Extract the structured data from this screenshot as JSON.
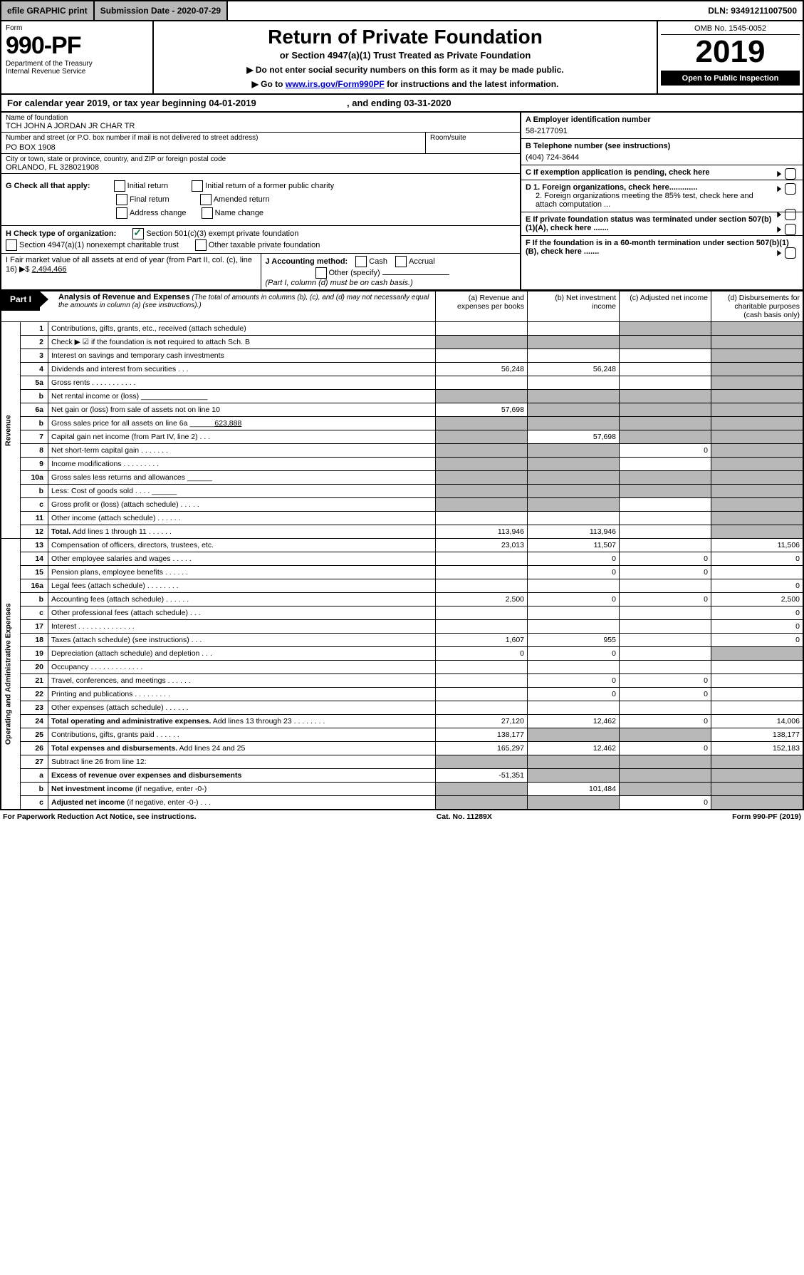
{
  "topbar": {
    "print": "efile GRAPHIC print",
    "submission": "Submission Date - 2020-07-29",
    "dln": "DLN: 93491211007500"
  },
  "head": {
    "form_label": "Form",
    "form_no": "990-PF",
    "dept": "Department of the Treasury",
    "irs": "Internal Revenue Service",
    "title": "Return of Private Foundation",
    "subtitle": "or Section 4947(a)(1) Trust Treated as Private Foundation",
    "instr1": "▶ Do not enter social security numbers on this form as it may be made public.",
    "instr2_pre": "▶ Go to ",
    "instr2_link": "www.irs.gov/Form990PF",
    "instr2_post": " for instructions and the latest information.",
    "omb": "OMB No. 1545-0052",
    "year": "2019",
    "open": "Open to Public Inspection"
  },
  "calyear": {
    "text": "For calendar year 2019, or tax year beginning 04-01-2019",
    "end": ", and ending 03-31-2020"
  },
  "info": {
    "name_label": "Name of foundation",
    "name": "TCH JOHN A JORDAN JR CHAR TR",
    "addr_label": "Number and street (or P.O. box number if mail is not delivered to street address)",
    "addr": "PO BOX 1908",
    "room_label": "Room/suite",
    "city_label": "City or town, state or province, country, and ZIP or foreign postal code",
    "city": "ORLANDO, FL  328021908",
    "a_label": "A Employer identification number",
    "a_val": "58-2177091",
    "b_label": "B Telephone number (see instructions)",
    "b_val": "(404) 724-3644",
    "c_label": "C If exemption application is pending, check here",
    "d1": "D 1. Foreign organizations, check here.............",
    "d2": "2. Foreign organizations meeting the 85% test, check here and attach computation ...",
    "e": "E  If private foundation status was terminated under section 507(b)(1)(A), check here .......",
    "f": "F  If the foundation is in a 60-month termination under section 507(b)(1)(B), check here .......",
    "g_label": "G Check all that apply:",
    "g_opts": {
      "initial": "Initial return",
      "initial_former": "Initial return of a former public charity",
      "final": "Final return",
      "amended": "Amended return",
      "addr_change": "Address change",
      "name_change": "Name change"
    },
    "h_label": "H Check type of organization:",
    "h_opts": {
      "501c3": "Section 501(c)(3) exempt private foundation",
      "4947": "Section 4947(a)(1) nonexempt charitable trust",
      "other_tax": "Other taxable private foundation"
    },
    "i_label": "I Fair market value of all assets at end of year (from Part II, col. (c), line 16)",
    "i_prefix": "▶$ ",
    "i_val": "2,494,466",
    "j_label": "J Accounting method:",
    "j_cash": "Cash",
    "j_accrual": "Accrual",
    "j_other": "Other (specify)",
    "j_note": "(Part I, column (d) must be on cash basis.)"
  },
  "part1": {
    "label": "Part I",
    "title": "Analysis of Revenue and Expenses",
    "note": " (The total of amounts in columns (b), (c), and (d) may not necessarily equal the amounts in column (a) (see instructions).)",
    "col_a": "(a)   Revenue and expenses per books",
    "col_b": "(b)   Net investment income",
    "col_c": "(c)   Adjusted net income",
    "col_d": "(d)   Disbursements for charitable purposes (cash basis only)",
    "vlabel_rev": "Revenue",
    "vlabel_exp": "Operating and Administrative Expenses"
  },
  "rows": [
    {
      "n": "1",
      "d": "Contributions, gifts, grants, etc., received (attach schedule)",
      "a": "",
      "b": "",
      "c": "",
      "dd": "",
      "sa": false,
      "sb": false,
      "sc": true,
      "sd": true
    },
    {
      "n": "2",
      "d": "Check ▶ ☑ if the foundation is <b>not</b> required to attach Sch. B",
      "a": "",
      "b": "",
      "c": "",
      "dd": "",
      "span": true,
      "sa": true,
      "sb": true,
      "sc": true,
      "sd": true
    },
    {
      "n": "3",
      "d": "Interest on savings and temporary cash investments",
      "a": "",
      "b": "",
      "c": "",
      "dd": "",
      "sc": false,
      "sd": true
    },
    {
      "n": "4",
      "d": "Dividends and interest from securities   .   .   .",
      "a": "56,248",
      "b": "56,248",
      "c": "",
      "dd": "",
      "sd": true
    },
    {
      "n": "5a",
      "d": "Gross rents   .   .   .   .   .   .   .   .   .   .   .",
      "a": "",
      "b": "",
      "c": "",
      "dd": "",
      "sd": true
    },
    {
      "n": "b",
      "d": "Net rental income or (loss)   ________________",
      "a": "",
      "b": "",
      "c": "",
      "dd": "",
      "sa": true,
      "sb": true,
      "sc": true,
      "sd": true
    },
    {
      "n": "6a",
      "d": "Net gain or (loss) from sale of assets not on line 10",
      "a": "57,698",
      "b": "",
      "c": "",
      "dd": "",
      "sb": true,
      "sc": true,
      "sd": true
    },
    {
      "n": "b",
      "d": "Gross sales price for all assets on line 6a ______<u>623,888</u>",
      "a": "",
      "b": "",
      "c": "",
      "dd": "",
      "sa": true,
      "sb": true,
      "sc": true,
      "sd": true
    },
    {
      "n": "7",
      "d": "Capital gain net income (from Part IV, line 2)   .   .   .",
      "a": "",
      "b": "57,698",
      "c": "",
      "dd": "",
      "sa": true,
      "sc": true,
      "sd": true
    },
    {
      "n": "8",
      "d": "Net short-term capital gain   .   .   .   .   .   .   .",
      "a": "",
      "b": "",
      "c": "0",
      "dd": "",
      "sa": true,
      "sb": true,
      "sd": true
    },
    {
      "n": "9",
      "d": "Income modifications   .   .   .   .   .   .   .   .   .",
      "a": "",
      "b": "",
      "c": "",
      "dd": "",
      "sa": true,
      "sb": true,
      "sd": true
    },
    {
      "n": "10a",
      "d": "Gross sales less returns and allowances  ______",
      "a": "",
      "b": "",
      "c": "",
      "dd": "",
      "sa": true,
      "sb": true,
      "sc": true,
      "sd": true
    },
    {
      "n": "b",
      "d": "Less: Cost of goods sold    .   .   .   .   ______",
      "a": "",
      "b": "",
      "c": "",
      "dd": "",
      "sa": true,
      "sb": true,
      "sc": true,
      "sd": true
    },
    {
      "n": "c",
      "d": "Gross profit or (loss) (attach schedule)   .   .   .   .   .",
      "a": "",
      "b": "",
      "c": "",
      "dd": "",
      "sa": true,
      "sb": true,
      "sd": true
    },
    {
      "n": "11",
      "d": "Other income (attach schedule)   .   .   .   .   .   .",
      "a": "",
      "b": "",
      "c": "",
      "dd": "",
      "sd": true
    },
    {
      "n": "12",
      "d": "<b>Total.</b> Add lines 1 through 11   .   .   .   .   .   .",
      "a": "113,946",
      "b": "113,946",
      "c": "",
      "dd": "",
      "sd": true
    },
    {
      "n": "13",
      "d": "Compensation of officers, directors, trustees, etc.",
      "a": "23,013",
      "b": "11,507",
      "c": "",
      "dd": "11,506"
    },
    {
      "n": "14",
      "d": "Other employee salaries and wages   .   .   .   .   .",
      "a": "",
      "b": "0",
      "c": "0",
      "dd": "0"
    },
    {
      "n": "15",
      "d": "Pension plans, employee benefits   .   .   .   .   .   .",
      "a": "",
      "b": "0",
      "c": "0",
      "dd": ""
    },
    {
      "n": "16a",
      "d": "Legal fees (attach schedule)   .   .   .   .   .   .   .   .",
      "a": "",
      "b": "",
      "c": "",
      "dd": "0"
    },
    {
      "n": "b",
      "d": "Accounting fees (attach schedule)   .   .   .   .   .   .",
      "a": "2,500",
      "b": "0",
      "c": "0",
      "dd": "2,500"
    },
    {
      "n": "c",
      "d": "Other professional fees (attach schedule)    .   .   .",
      "a": "",
      "b": "",
      "c": "",
      "dd": "0"
    },
    {
      "n": "17",
      "d": "Interest   .   .   .   .   .   .   .   .   .   .   .   .   .   .",
      "a": "",
      "b": "",
      "c": "",
      "dd": "0"
    },
    {
      "n": "18",
      "d": "Taxes (attach schedule) (see instructions)    .   .   .",
      "a": "1,607",
      "b": "955",
      "c": "",
      "dd": "0"
    },
    {
      "n": "19",
      "d": "Depreciation (attach schedule) and depletion    .   .   .",
      "a": "0",
      "b": "0",
      "c": "",
      "dd": "",
      "sd": true
    },
    {
      "n": "20",
      "d": "Occupancy   .   .   .   .   .   .   .   .   .   .   .   .   .",
      "a": "",
      "b": "",
      "c": "",
      "dd": ""
    },
    {
      "n": "21",
      "d": "Travel, conferences, and meetings   .   .   .   .   .   .",
      "a": "",
      "b": "0",
      "c": "0",
      "dd": ""
    },
    {
      "n": "22",
      "d": "Printing and publications   .   .   .   .   .   .   .   .   .",
      "a": "",
      "b": "0",
      "c": "0",
      "dd": ""
    },
    {
      "n": "23",
      "d": "Other expenses (attach schedule)   .   .   .   .   .   .",
      "a": "",
      "b": "",
      "c": "",
      "dd": ""
    },
    {
      "n": "24",
      "d": "<b>Total operating and administrative expenses.</b> Add lines 13 through 23   .   .   .   .   .   .   .   .",
      "a": "27,120",
      "b": "12,462",
      "c": "0",
      "dd": "14,006"
    },
    {
      "n": "25",
      "d": "Contributions, gifts, grants paid    .   .   .   .   .   .",
      "a": "138,177",
      "b": "",
      "c": "",
      "dd": "138,177",
      "sb": true,
      "sc": true
    },
    {
      "n": "26",
      "d": "<b>Total expenses and disbursements.</b> Add lines 24 and 25",
      "a": "165,297",
      "b": "12,462",
      "c": "0",
      "dd": "152,183"
    },
    {
      "n": "27",
      "d": "Subtract line 26 from line 12:",
      "a": "",
      "b": "",
      "c": "",
      "dd": "",
      "sa": true,
      "sb": true,
      "sc": true,
      "sd": true
    },
    {
      "n": "a",
      "d": "<b>Excess of revenue over expenses and disbursements</b>",
      "a": "-51,351",
      "b": "",
      "c": "",
      "dd": "",
      "sb": true,
      "sc": true,
      "sd": true
    },
    {
      "n": "b",
      "d": "<b>Net investment income</b> (if negative, enter -0-)",
      "a": "",
      "b": "101,484",
      "c": "",
      "dd": "",
      "sa": true,
      "sc": true,
      "sd": true
    },
    {
      "n": "c",
      "d": "<b>Adjusted net income</b> (if negative, enter -0-)   .   .   .",
      "a": "",
      "b": "",
      "c": "0",
      "dd": "",
      "sa": true,
      "sb": true,
      "sd": true
    }
  ],
  "footer": {
    "pra": "For Paperwork Reduction Act Notice, see instructions.",
    "cat": "Cat. No. 11289X",
    "form": "Form 990-PF (2019)"
  }
}
